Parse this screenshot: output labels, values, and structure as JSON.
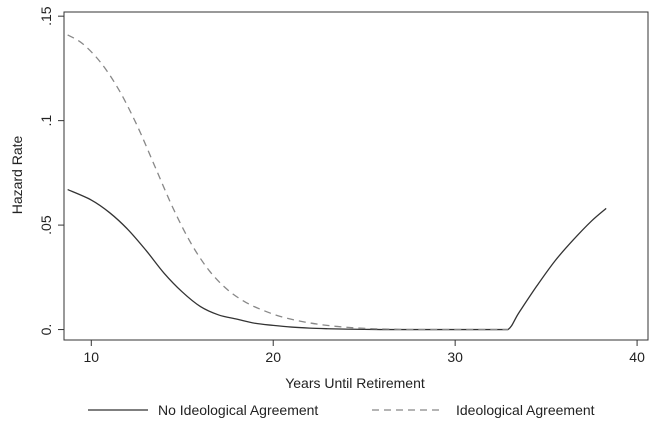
{
  "chart_data": {
    "type": "line",
    "title": "",
    "xlabel": "Years Until Retirement",
    "ylabel": "Hazard Rate",
    "xlim": [
      8.5,
      40.6
    ],
    "ylim": [
      -0.005,
      0.152
    ],
    "xticks": [
      {
        "value": 10,
        "label": "10"
      },
      {
        "value": 20,
        "label": "20"
      },
      {
        "value": 30,
        "label": "30"
      },
      {
        "value": 40,
        "label": "40"
      }
    ],
    "yticks": [
      {
        "value": 0,
        "label": "0."
      },
      {
        "value": 0.05,
        "label": ".05"
      },
      {
        "value": 0.1,
        "label": ".1"
      },
      {
        "value": 0.15,
        "label": ".15"
      }
    ],
    "grid": false,
    "legend_position": "bottom",
    "series": [
      {
        "name": "No Ideological Agreement",
        "style": "solid",
        "color": "#333333",
        "points": [
          [
            8.7,
            0.067
          ],
          [
            10,
            0.062
          ],
          [
            11,
            0.056
          ],
          [
            12,
            0.048
          ],
          [
            13,
            0.038
          ],
          [
            14,
            0.027
          ],
          [
            15,
            0.018
          ],
          [
            16,
            0.011
          ],
          [
            17,
            0.007
          ],
          [
            18,
            0.005
          ],
          [
            19,
            0.003
          ],
          [
            20,
            0.002
          ],
          [
            21,
            0.0012
          ],
          [
            22,
            0.0007
          ],
          [
            23,
            0.0004
          ],
          [
            24,
            0.0002
          ],
          [
            25,
            0.0001
          ],
          [
            26,
            0
          ],
          [
            27,
            0
          ],
          [
            28,
            0
          ],
          [
            29,
            0
          ],
          [
            30,
            0
          ],
          [
            31,
            0
          ],
          [
            32,
            0
          ],
          [
            32.9,
            0
          ],
          [
            33.5,
            0.008
          ],
          [
            34.5,
            0.021
          ],
          [
            35.5,
            0.033
          ],
          [
            36.5,
            0.043
          ],
          [
            37.5,
            0.052
          ],
          [
            38.3,
            0.058
          ]
        ]
      },
      {
        "name": "Ideological Agreement",
        "style": "dashed",
        "color": "#888888",
        "points": [
          [
            8.7,
            0.141
          ],
          [
            9.5,
            0.137
          ],
          [
            10.5,
            0.128
          ],
          [
            11.5,
            0.115
          ],
          [
            12.5,
            0.098
          ],
          [
            13.5,
            0.078
          ],
          [
            14.5,
            0.058
          ],
          [
            15.5,
            0.041
          ],
          [
            16.5,
            0.028
          ],
          [
            17.5,
            0.019
          ],
          [
            18.5,
            0.013
          ],
          [
            19.5,
            0.009
          ],
          [
            20.5,
            0.006
          ],
          [
            21.5,
            0.004
          ],
          [
            22.5,
            0.0025
          ],
          [
            23.5,
            0.0015
          ],
          [
            24.5,
            0.0008
          ],
          [
            25.5,
            0.0004
          ],
          [
            26.5,
            0.0002
          ],
          [
            27.5,
            0
          ],
          [
            28.5,
            0
          ],
          [
            30,
            0
          ],
          [
            32.9,
            0
          ]
        ]
      }
    ]
  }
}
